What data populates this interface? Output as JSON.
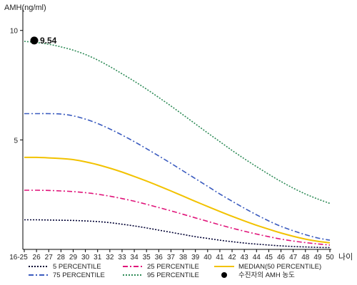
{
  "chart_data": {
    "type": "line",
    "ylabel": "AMH(ng/ml)",
    "xlabel": "나이",
    "x": [
      "16-25",
      "26",
      "27",
      "28",
      "29",
      "30",
      "31",
      "32",
      "33",
      "34",
      "35",
      "36",
      "37",
      "38",
      "39",
      "40",
      "41",
      "42",
      "43",
      "44",
      "45",
      "46",
      "47",
      "48",
      "49",
      "50"
    ],
    "yticks": [
      5,
      10
    ],
    "ylim": [
      0,
      11
    ],
    "series": [
      {
        "name": "5 PERCENTILE",
        "color": "#000033",
        "dash": "2,2",
        "values": [
          1.35,
          1.35,
          1.34,
          1.33,
          1.32,
          1.3,
          1.27,
          1.22,
          1.15,
          1.07,
          0.98,
          0.88,
          0.78,
          0.68,
          0.58,
          0.5,
          0.42,
          0.35,
          0.29,
          0.24,
          0.2,
          0.16,
          0.13,
          0.11,
          0.09,
          0.08
        ]
      },
      {
        "name": "25 PERCENTILE",
        "color": "#e0147a",
        "dash": "7,3,2,3",
        "values": [
          2.7,
          2.7,
          2.69,
          2.67,
          2.64,
          2.59,
          2.52,
          2.43,
          2.32,
          2.2,
          2.06,
          1.91,
          1.76,
          1.6,
          1.44,
          1.28,
          1.12,
          0.97,
          0.83,
          0.7,
          0.58,
          0.47,
          0.38,
          0.31,
          0.25,
          0.2
        ]
      },
      {
        "name": "MEDIAN(50 PERCENTILE)",
        "color": "#f2c200",
        "dash": "",
        "values": [
          4.2,
          4.2,
          4.18,
          4.15,
          4.1,
          4.0,
          3.87,
          3.71,
          3.53,
          3.33,
          3.12,
          2.9,
          2.67,
          2.43,
          2.19,
          1.96,
          1.73,
          1.51,
          1.3,
          1.1,
          0.92,
          0.75,
          0.6,
          0.47,
          0.37,
          0.3
        ]
      },
      {
        "name": "75 PERCENTILE",
        "color": "#3a5bbf",
        "dash": "7,3,2,3",
        "values": [
          6.2,
          6.2,
          6.2,
          6.18,
          6.1,
          5.95,
          5.75,
          5.5,
          5.22,
          4.92,
          4.6,
          4.27,
          3.93,
          3.58,
          3.23,
          2.88,
          2.53,
          2.2,
          1.88,
          1.58,
          1.3,
          1.05,
          0.85,
          0.67,
          0.52,
          0.42
        ]
      },
      {
        "name": "95 PERCENTILE",
        "color": "#2e8b57",
        "dash": "2,2",
        "values": [
          9.5,
          9.45,
          9.37,
          9.25,
          9.1,
          8.9,
          8.65,
          8.35,
          8.02,
          7.68,
          7.32,
          6.94,
          6.55,
          6.14,
          5.73,
          5.32,
          4.92,
          4.52,
          4.14,
          3.78,
          3.43,
          3.1,
          2.8,
          2.53,
          2.3,
          2.1
        ]
      }
    ],
    "marker": {
      "name": "수진자의 AMH 농도",
      "x": "16-25",
      "value": 9.54,
      "label": "9.54",
      "color": "#000000"
    },
    "legend": [
      {
        "label": "5 PERCENTILE",
        "color": "#000033",
        "dash": "2,2"
      },
      {
        "label": "25 PERCENTILE",
        "color": "#e0147a",
        "dash": "7,3,2,3"
      },
      {
        "label": "MEDIAN(50 PERCENTILE)",
        "color": "#f2c200",
        "dash": ""
      },
      {
        "label": "75 PERCENTILE",
        "color": "#3a5bbf",
        "dash": "7,3,2,3"
      },
      {
        "label": "95 PERCENTILE",
        "color": "#2e8b57",
        "dash": "2,2"
      },
      {
        "label": "수진자의 AMH 농도",
        "marker": true
      }
    ],
    "legend_position": "bottom",
    "grid": false
  }
}
